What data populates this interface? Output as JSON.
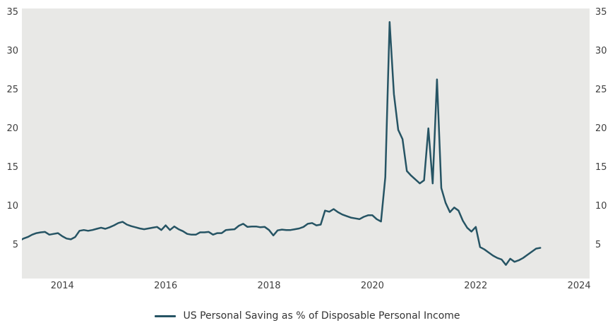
{
  "chart_data": {
    "type": "line",
    "title": "",
    "xlabel": "",
    "ylabel": "",
    "grid": false,
    "plot_background": "#e8e8e6",
    "axis_label_color": "#404040",
    "legend_text_color": "#333333",
    "xlim": [
      2013.218,
      2024.203
    ],
    "ylim": [
      0.75,
      35.54
    ],
    "x_ticks": [
      2014,
      2016,
      2018,
      2020,
      2022,
      2024
    ],
    "y_ticks": [
      5,
      10,
      15,
      20,
      25,
      30,
      35
    ],
    "y_axis_sides": [
      "left",
      "right"
    ],
    "legend": {
      "position": "bottom"
    },
    "series": [
      {
        "name": "US Personal Saving as % of Disposable Personal Income",
        "color": "#265464",
        "frequency": "monthly",
        "start_year": 2013,
        "start_month": 2,
        "values": [
          5.6,
          5.9,
          6.1,
          6.4,
          6.6,
          6.7,
          6.75,
          6.4,
          6.5,
          6.6,
          6.2,
          5.9,
          5.8,
          6.1,
          6.9,
          7.0,
          6.9,
          7.0,
          7.15,
          7.3,
          7.15,
          7.35,
          7.6,
          7.9,
          8.05,
          7.7,
          7.5,
          7.35,
          7.2,
          7.1,
          7.2,
          7.3,
          7.4,
          7.0,
          7.6,
          7.0,
          7.45,
          7.1,
          6.85,
          6.5,
          6.4,
          6.4,
          6.7,
          6.7,
          6.75,
          6.4,
          6.6,
          6.6,
          7.0,
          7.05,
          7.1,
          7.55,
          7.8,
          7.4,
          7.45,
          7.45,
          7.35,
          7.4,
          7.0,
          6.3,
          6.95,
          7.05,
          7.0,
          7.0,
          7.1,
          7.2,
          7.4,
          7.8,
          7.9,
          7.6,
          7.7,
          9.5,
          9.35,
          9.7,
          9.3,
          9.0,
          8.8,
          8.6,
          8.5,
          8.4,
          8.7,
          8.9,
          8.9,
          8.4,
          8.1,
          13.8,
          33.8,
          24.5,
          19.9,
          18.7,
          14.6,
          14.0,
          13.5,
          13.0,
          13.4,
          20.1,
          13.0,
          26.4,
          12.4,
          10.5,
          9.3,
          9.9,
          9.5,
          8.2,
          7.3,
          6.8,
          7.4,
          4.8,
          4.5,
          4.1,
          3.7,
          3.4,
          3.2,
          2.5,
          3.3,
          2.9,
          3.1,
          3.4,
          3.8,
          4.2,
          4.6,
          4.7
        ]
      }
    ]
  }
}
